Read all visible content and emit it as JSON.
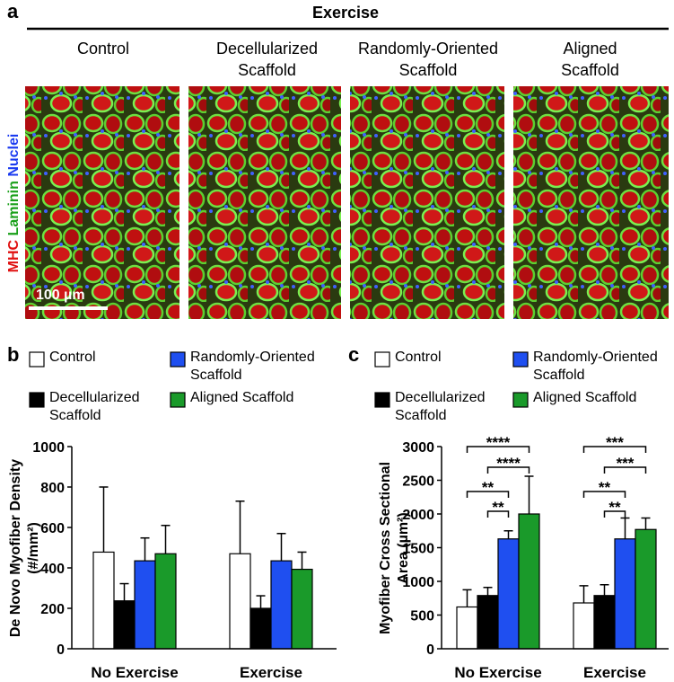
{
  "figure": {
    "panel_a": "a",
    "group_title": "Exercise",
    "image_titles": [
      "Control",
      "Decellularized Scaffold",
      "Randomly-Oriented Scaffold",
      "Aligned Scaffold"
    ],
    "stain_labels": [
      {
        "text": "MHC",
        "color": "#e01010"
      },
      {
        "text": "Laminin",
        "color": "#1aa01a"
      },
      {
        "text": "Nuclei",
        "color": "#1a3af0"
      }
    ],
    "scale_bar": "100 µm"
  },
  "chart_data": [
    {
      "type": "bar",
      "panel": "b",
      "y_label": "De Novo Myofiber Density (#/mm²)",
      "categories": [
        "No Exercise",
        "Exercise"
      ],
      "series": [
        {
          "name": "Control",
          "color": "#ffffff",
          "values": [
            478,
            470
          ],
          "errors": [
            322,
            260
          ]
        },
        {
          "name": "Decellularized Scaffold",
          "color": "#000000",
          "values": [
            237,
            200
          ],
          "errors": [
            85,
            62
          ]
        },
        {
          "name": "Randomly-Oriented Scaffold",
          "color": "#1f4ff0",
          "values": [
            435,
            435
          ],
          "errors": [
            113,
            135
          ]
        },
        {
          "name": "Aligned Scaffold",
          "color": "#1a9a2a",
          "values": [
            470,
            393
          ],
          "errors": [
            140,
            85
          ]
        }
      ],
      "ylim": [
        0,
        1000
      ],
      "yticks": [
        0,
        200,
        400,
        600,
        800,
        1000
      ]
    },
    {
      "type": "bar",
      "panel": "c",
      "y_label": "Myofiber Cross Sectional Area (µm²)",
      "categories": [
        "No Exercise",
        "Exercise"
      ],
      "series": [
        {
          "name": "Control",
          "color": "#ffffff",
          "values": [
            620,
            680
          ],
          "errors": [
            255,
            255
          ]
        },
        {
          "name": "Decellularized Scaffold",
          "color": "#000000",
          "values": [
            790,
            790
          ],
          "errors": [
            120,
            160
          ]
        },
        {
          "name": "Randomly-Oriented Scaffold",
          "color": "#1f4ff0",
          "values": [
            1630,
            1630
          ],
          "errors": [
            120,
            310
          ]
        },
        {
          "name": "Aligned Scaffold",
          "color": "#1a9a2a",
          "values": [
            2000,
            1770
          ],
          "errors": [
            560,
            170
          ]
        }
      ],
      "ylim": [
        0,
        3000
      ],
      "yticks": [
        0,
        500,
        1000,
        1500,
        2000,
        2500,
        3000
      ],
      "annotations": [
        {
          "text": "****",
          "group": 0,
          "bars": [
            0,
            3
          ]
        },
        {
          "text": "****",
          "group": 0,
          "bars": [
            1,
            3
          ]
        },
        {
          "text": "**",
          "group": 0,
          "bars": [
            0,
            2
          ]
        },
        {
          "text": "**",
          "group": 0,
          "bars": [
            1,
            2
          ]
        },
        {
          "text": "***",
          "group": 1,
          "bars": [
            0,
            3
          ]
        },
        {
          "text": "***",
          "group": 1,
          "bars": [
            1,
            3
          ]
        },
        {
          "text": "**",
          "group": 1,
          "bars": [
            0,
            2
          ]
        },
        {
          "text": "**",
          "group": 1,
          "bars": [
            1,
            2
          ]
        }
      ]
    }
  ]
}
